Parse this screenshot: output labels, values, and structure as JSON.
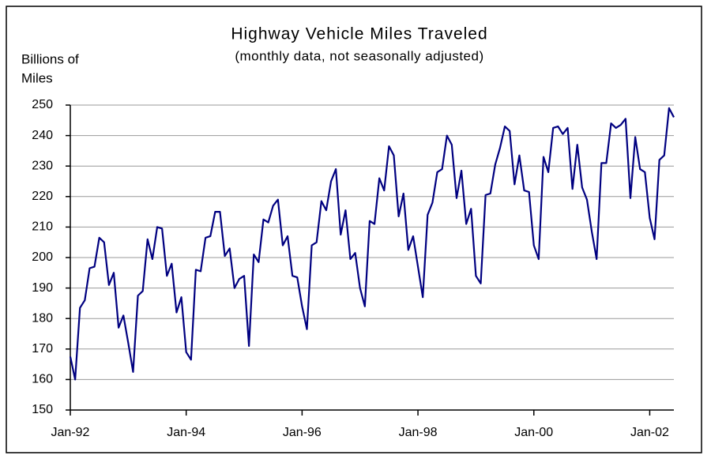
{
  "chart_data": {
    "type": "line",
    "title": "Highway Vehicle Miles Traveled",
    "subtitle": "(monthly data, not seasonally adjusted)",
    "y_label": [
      "Billions of",
      "Miles"
    ],
    "categories": [
      "Jan-92",
      null,
      null,
      null,
      null,
      null,
      null,
      null,
      null,
      null,
      null,
      null,
      null,
      null,
      null,
      null,
      null,
      null,
      null,
      null,
      null,
      null,
      null,
      null,
      "Jan-94",
      null,
      null,
      null,
      null,
      null,
      null,
      null,
      null,
      null,
      null,
      null,
      null,
      null,
      null,
      null,
      null,
      null,
      null,
      null,
      null,
      null,
      null,
      null,
      "Jan-96",
      null,
      null,
      null,
      null,
      null,
      null,
      null,
      null,
      null,
      null,
      null,
      null,
      null,
      null,
      null,
      null,
      null,
      null,
      null,
      null,
      null,
      null,
      null,
      "Jan-98",
      null,
      null,
      null,
      null,
      null,
      null,
      null,
      null,
      null,
      null,
      null,
      null,
      null,
      null,
      null,
      null,
      null,
      null,
      null,
      null,
      null,
      null,
      null,
      "Jan-00",
      null,
      null,
      null,
      null,
      null,
      null,
      null,
      null,
      null,
      null,
      null,
      null,
      null,
      null,
      null,
      null,
      null,
      null,
      null,
      null,
      null,
      null,
      null,
      "Jan-02",
      null,
      null,
      null,
      null,
      null
    ],
    "series": [
      {
        "name": "Vehicle Miles Traveled",
        "color": "#000080",
        "values": [
          167.5,
          160,
          183.5,
          186,
          196.5,
          197,
          206.5,
          205,
          191,
          195,
          177,
          181,
          172,
          162.5,
          187.5,
          189,
          206,
          199.5,
          210,
          209.5,
          194,
          198,
          182,
          187,
          169,
          166.5,
          196,
          195.5,
          206.5,
          207,
          215,
          215,
          200.5,
          203,
          190,
          193,
          194,
          171,
          201,
          198.5,
          212.5,
          211.5,
          217,
          219,
          204,
          207,
          194,
          193.5,
          184,
          176.5,
          204,
          205,
          218.5,
          215.5,
          225,
          229,
          207.5,
          215.5,
          199.5,
          201.5,
          190,
          184,
          212,
          211,
          226,
          222,
          236.5,
          233.5,
          213.5,
          221,
          202.5,
          207,
          197,
          187,
          214,
          218,
          228,
          229,
          240,
          237,
          219.5,
          228.5,
          211,
          216,
          194,
          191.5,
          220.5,
          221,
          230.5,
          236,
          243,
          241.5,
          224,
          233.5,
          222,
          221.5,
          204,
          199.5,
          233,
          228,
          242.5,
          243,
          240.5,
          242.5,
          222.5,
          237,
          223,
          219,
          208.5,
          199.5,
          231,
          231,
          244,
          242.5,
          243.5,
          245.5,
          219.5,
          239.5,
          229,
          228,
          213,
          206,
          232,
          233.5,
          249,
          246
        ]
      }
    ],
    "ylim": [
      150,
      250
    ],
    "yticks": [
      150,
      160,
      170,
      180,
      190,
      200,
      210,
      220,
      230,
      240,
      250
    ],
    "grid": true
  }
}
